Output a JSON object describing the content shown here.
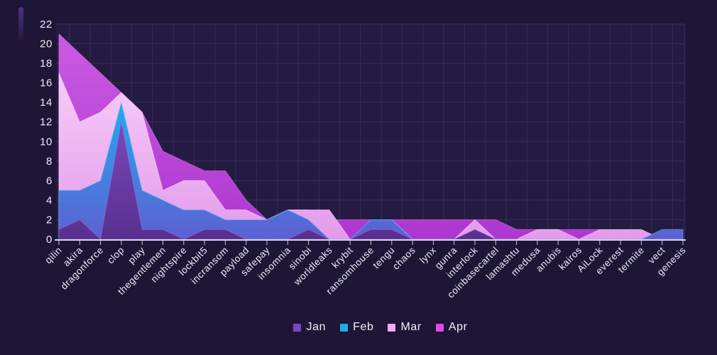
{
  "page": {
    "background": "#1f1536"
  },
  "chart_data": {
    "type": "area",
    "mode": "overlapping-series-from-zero",
    "title": "",
    "xlabel": "",
    "ylabel": "",
    "categories": [
      "qilin",
      "akira",
      "dragonforce",
      "clop",
      "play",
      "thegentlemen",
      "nightspire",
      "lockbit5",
      "incransom",
      "payload",
      "safepay",
      "insomnia",
      "sinobi",
      "worldleaks",
      "krybit",
      "ransomhouse",
      "tengu",
      "chaos",
      "lynx",
      "gunra",
      "interlock",
      "coinbasecartel",
      "lamashtu",
      "medusa",
      "anubis",
      "kairos",
      "AiLock",
      "everest",
      "termite",
      "vect",
      "genesis"
    ],
    "series": [
      {
        "name": "Jan",
        "color": "#7448c8",
        "gradient_top": "#7a48bc",
        "gradient_bottom": "#582f8e",
        "edge": "#9a6fd8",
        "values": [
          1,
          2,
          0,
          12,
          1,
          1,
          0,
          1,
          1,
          0,
          0,
          0,
          1,
          0,
          0,
          1,
          1,
          0,
          0,
          0,
          1,
          0,
          0,
          0,
          0,
          0,
          0,
          0,
          0,
          0,
          0
        ]
      },
      {
        "name": "Feb",
        "color": "#1caaf0",
        "gradient_top": "#22aaf0",
        "gradient_bottom": "#5e60d2",
        "edge": "#55c8fa",
        "values": [
          5,
          5,
          6,
          14,
          5,
          4,
          3,
          3,
          2,
          2,
          2,
          3,
          2,
          0,
          0,
          2,
          2,
          0,
          0,
          0,
          0,
          0,
          0,
          0,
          0,
          0,
          0,
          0,
          0,
          1,
          1
        ]
      },
      {
        "name": "Mar",
        "color": "#f2aaf2",
        "gradient_top": "#f6cdf8",
        "gradient_bottom": "#e49aec",
        "edge": "#fbdcfc",
        "values": [
          17,
          12,
          13,
          15,
          13,
          5,
          6,
          6,
          3,
          3,
          2,
          3,
          3,
          3,
          0,
          0,
          2,
          0,
          0,
          0,
          2,
          0,
          0,
          1,
          1,
          0,
          1,
          1,
          1,
          0,
          0
        ]
      },
      {
        "name": "Apr",
        "color": "#e048e8",
        "gradient_top": "#cb5ae2",
        "gradient_bottom": "#ad37cf",
        "edge": "#e07bf0",
        "values": [
          21,
          19,
          17,
          15,
          13,
          9,
          8,
          7,
          7,
          4,
          2,
          3,
          3,
          2,
          2,
          2,
          2,
          2,
          2,
          2,
          2,
          2,
          1,
          1,
          1,
          1,
          1,
          0,
          0,
          0,
          0
        ]
      }
    ],
    "draw_order": [
      "Apr",
      "Mar",
      "Feb",
      "Jan"
    ],
    "y_axis": {
      "min": 0,
      "max": 22,
      "step": 2,
      "tick_labels": [
        "0",
        "2",
        "4",
        "6",
        "8",
        "10",
        "12",
        "14",
        "16",
        "18",
        "20",
        "22"
      ]
    },
    "x_axis": {
      "label_rotation": -45
    },
    "legend": {
      "position": "bottom-center",
      "entries": [
        "Jan",
        "Feb",
        "Mar",
        "Apr"
      ]
    },
    "grid": {
      "horizontal": true,
      "vertical": true
    }
  },
  "colors": {
    "plot_background": "#241a42",
    "grid": "#393054",
    "axis_line": "#d8d5e6",
    "tick": "#c9c5da",
    "label": "#f1ecf9"
  }
}
